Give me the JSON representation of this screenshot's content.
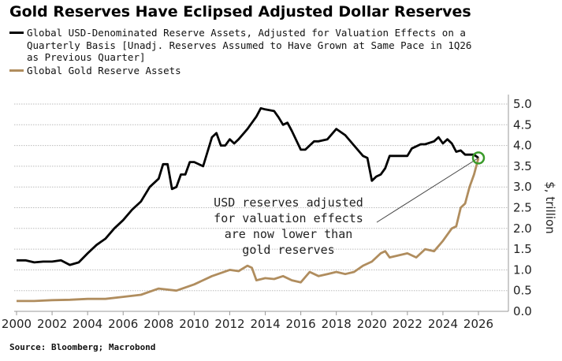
{
  "chart_data": {
    "type": "line",
    "title": "Gold Reserves Have Eclipsed Adjusted Dollar Reserves",
    "ylabel": "$, trillion",
    "xlim": [
      2000,
      2027.5
    ],
    "ylim": [
      0,
      5
    ],
    "x_ticks": [
      "2000",
      "2002",
      "2004",
      "2006",
      "2008",
      "2010",
      "2012",
      "2014",
      "2016",
      "2018",
      "2020",
      "2022",
      "2024",
      "2026"
    ],
    "y_ticks": [
      "0.0",
      "0.5",
      "1.0",
      "1.5",
      "2.0",
      "2.5",
      "3.0",
      "3.5",
      "4.0",
      "4.5",
      "5.0"
    ],
    "y_axis_side": "right",
    "grid": true,
    "legend_placement": "top-left",
    "series": [
      {
        "name": "Global USD-Denominated Reserve Assets, Adjusted for Valuation Effects on a Quarterly Basis [Unadj. Reserves Assumed to Have Grown at Same Pace in 1Q26 as Previous Quarter]",
        "color": "#000000",
        "x": [
          2000,
          2000.5,
          2001,
          2001.5,
          2002,
          2002.5,
          2003,
          2003.5,
          2004,
          2004.5,
          2005,
          2005.5,
          2006,
          2006.5,
          2007,
          2007.5,
          2008,
          2008.25,
          2008.5,
          2008.75,
          2009,
          2009.25,
          2009.5,
          2009.75,
          2010,
          2010.5,
          2011,
          2011.25,
          2011.5,
          2011.75,
          2012,
          2012.25,
          2012.5,
          2013,
          2013.5,
          2013.75,
          2014,
          2014.5,
          2014.75,
          2015,
          2015.25,
          2015.5,
          2016,
          2016.25,
          2016.75,
          2017,
          2017.5,
          2018,
          2018.5,
          2019,
          2019.5,
          2019.75,
          2020,
          2020.25,
          2020.5,
          2020.75,
          2021,
          2021.5,
          2022,
          2022.25,
          2022.75,
          2023,
          2023.5,
          2023.75,
          2024,
          2024.25,
          2024.5,
          2024.75,
          2025,
          2025.25,
          2025.75,
          2026
        ],
        "y": [
          1.23,
          1.23,
          1.18,
          1.2,
          1.2,
          1.23,
          1.12,
          1.18,
          1.4,
          1.6,
          1.75,
          2.0,
          2.2,
          2.45,
          2.65,
          3.0,
          3.2,
          3.55,
          3.55,
          2.95,
          3.0,
          3.3,
          3.3,
          3.6,
          3.6,
          3.5,
          4.2,
          4.3,
          4.0,
          4.0,
          4.15,
          4.05,
          4.15,
          4.4,
          4.7,
          4.9,
          4.87,
          4.83,
          4.68,
          4.5,
          4.55,
          4.35,
          3.9,
          3.9,
          4.1,
          4.1,
          4.15,
          4.4,
          4.25,
          4.0,
          3.75,
          3.7,
          3.15,
          3.25,
          3.3,
          3.45,
          3.75,
          3.75,
          3.75,
          3.93,
          4.03,
          4.03,
          4.1,
          4.2,
          4.05,
          4.15,
          4.05,
          3.85,
          3.88,
          3.78,
          3.78,
          3.7
        ]
      },
      {
        "name": "Global Gold Reserve Assets",
        "color": "#b08d5e",
        "x": [
          2000,
          2001,
          2002,
          2003,
          2004,
          2005,
          2006,
          2007,
          2008,
          2009,
          2010,
          2011,
          2012,
          2012.5,
          2013,
          2013.25,
          2013.5,
          2014,
          2014.5,
          2015,
          2015.5,
          2016,
          2016.5,
          2017,
          2017.5,
          2018,
          2018.5,
          2019,
          2019.5,
          2020,
          2020.5,
          2020.75,
          2021,
          2021.5,
          2022,
          2022.5,
          2023,
          2023.5,
          2024,
          2024.5,
          2024.75,
          2025,
          2025.25,
          2025.5,
          2025.75,
          2026
        ],
        "y": [
          0.25,
          0.25,
          0.27,
          0.28,
          0.3,
          0.3,
          0.35,
          0.4,
          0.55,
          0.5,
          0.65,
          0.85,
          1.0,
          0.97,
          1.1,
          1.05,
          0.75,
          0.8,
          0.78,
          0.85,
          0.75,
          0.7,
          0.95,
          0.85,
          0.9,
          0.95,
          0.9,
          0.95,
          1.1,
          1.2,
          1.4,
          1.45,
          1.3,
          1.35,
          1.4,
          1.3,
          1.5,
          1.45,
          1.7,
          2.0,
          2.05,
          2.5,
          2.6,
          3.0,
          3.3,
          3.7
        ]
      }
    ],
    "annotation": {
      "lines": [
        "USD reserves adjusted",
        "for valuation effects",
        "are now lower than",
        "gold reserves"
      ],
      "points_to": [
        2026,
        3.7
      ],
      "highlight_color": "#3a9a2a"
    },
    "source": "Source: Bloomberg; Macrobond"
  }
}
